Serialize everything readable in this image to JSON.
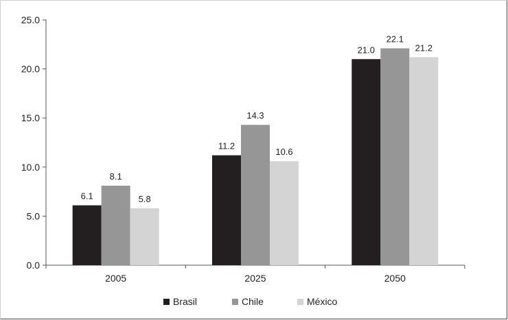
{
  "chart_data": {
    "type": "bar",
    "categories": [
      "2005",
      "2025",
      "2050"
    ],
    "series": [
      {
        "name": "Brasil",
        "values": [
          6.1,
          11.2,
          21.0
        ],
        "color": "#231f20"
      },
      {
        "name": "Chile",
        "values": [
          8.1,
          14.3,
          22.1
        ],
        "color": "#969696"
      },
      {
        "name": "México",
        "values": [
          5.8,
          10.6,
          21.2
        ],
        "color": "#d4d4d4"
      }
    ],
    "data_labels": [
      [
        "6.1",
        "8.1",
        "5.8"
      ],
      [
        "11.2",
        "14.3",
        "10.6"
      ],
      [
        "21.0",
        "22.1",
        "21.2"
      ]
    ],
    "yticks": [
      "0.0",
      "5.0",
      "10.0",
      "15.0",
      "20.0",
      "25.0"
    ],
    "ylim": [
      0,
      25
    ],
    "grid": false,
    "legend_position": "bottom",
    "title": "",
    "xlabel": "",
    "ylabel": ""
  }
}
